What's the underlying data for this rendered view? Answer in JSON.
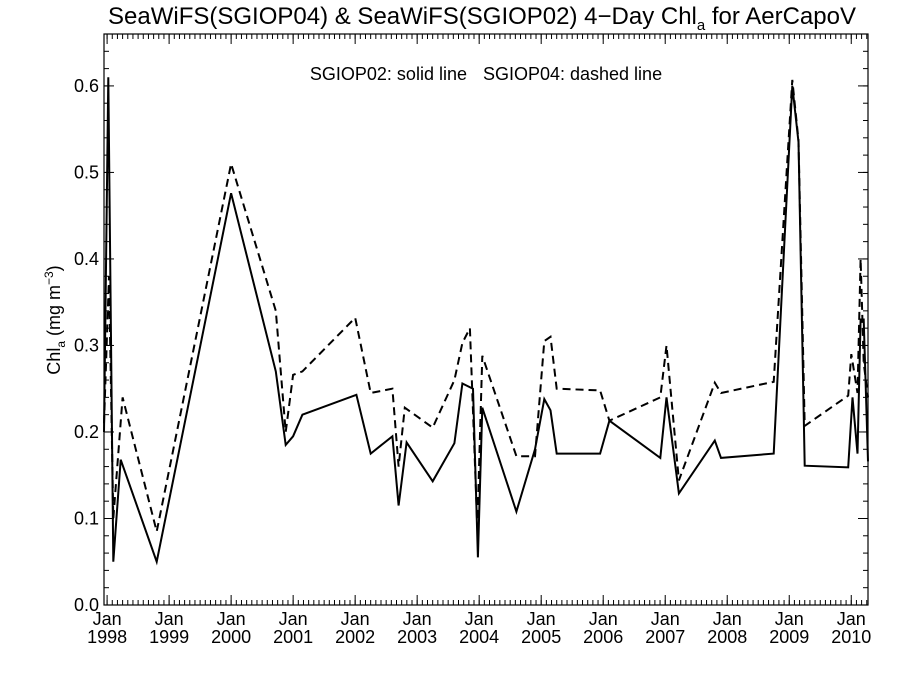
{
  "chart_data": {
    "type": "line",
    "title": "SeaWiFS(SGIOP04) & SeaWiFS(SGIOP02) 4−Day Chl",
    "title_subscript": "a",
    "title_suffix": " for AerCapoV",
    "ylabel": "Chl",
    "ylabel_subscript": "a",
    "ylabel_units": " (mg m",
    "ylabel_exponent": "−3",
    "ylabel_close": ")",
    "annotation_solid": "SGIOP02: solid line",
    "annotation_dashed": "SGIOP04: dashed line",
    "xlim": [
      1997.95,
      2010.27
    ],
    "ylim": [
      0,
      0.66
    ],
    "yticks": [
      0.0,
      0.1,
      0.2,
      0.3,
      0.4,
      0.5,
      0.6
    ],
    "ytick_labels": [
      "0.0",
      "0.1",
      "0.2",
      "0.3",
      "0.4",
      "0.5",
      "0.6"
    ],
    "xticks": [
      {
        "value": 1998,
        "month": "Jan",
        "year": "1998"
      },
      {
        "value": 1999,
        "month": "Jan",
        "year": "1999"
      },
      {
        "value": 2000,
        "month": "Jan",
        "year": "2000"
      },
      {
        "value": 2001,
        "month": "Jan",
        "year": "2001"
      },
      {
        "value": 2002,
        "month": "Jan",
        "year": "2002"
      },
      {
        "value": 2003,
        "month": "Jan",
        "year": "2003"
      },
      {
        "value": 2004,
        "month": "Jan",
        "year": "2004"
      },
      {
        "value": 2005,
        "month": "Jan",
        "year": "2005"
      },
      {
        "value": 2006,
        "month": "Jan",
        "year": "2006"
      },
      {
        "value": 2007,
        "month": "Jan",
        "year": "2007"
      },
      {
        "value": 2008,
        "month": "Jan",
        "year": "2008"
      },
      {
        "value": 2009,
        "month": "Jan",
        "year": "2009"
      },
      {
        "value": 2010,
        "month": "Jan",
        "year": "2010"
      }
    ],
    "grid": false,
    "series": [
      {
        "name": "SGIOP02",
        "style": "solid",
        "color": "#000000",
        "x": [
          1997.95,
          1998.02,
          1998.1,
          1998.22,
          1998.8,
          2000.0,
          2000.72,
          2000.88,
          2001.0,
          2001.15,
          2002.02,
          2002.25,
          2002.6,
          2002.7,
          2002.83,
          2003.25,
          2003.6,
          2003.73,
          2003.9,
          2003.98,
          2004.05,
          2004.6,
          2004.9,
          2005.05,
          2005.15,
          2005.25,
          2005.95,
          2006.1,
          2006.92,
          2007.02,
          2007.22,
          2007.8,
          2007.9,
          2008.75,
          2009.05,
          2009.15,
          2009.25,
          2009.95,
          2010.02,
          2010.1,
          2010.15,
          2010.2,
          2010.27
        ],
        "y": [
          0.2,
          0.61,
          0.05,
          0.168,
          0.05,
          0.476,
          0.27,
          0.185,
          0.195,
          0.22,
          0.243,
          0.175,
          0.195,
          0.115,
          0.188,
          0.143,
          0.187,
          0.256,
          0.25,
          0.055,
          0.228,
          0.108,
          0.18,
          0.238,
          0.225,
          0.175,
          0.175,
          0.213,
          0.17,
          0.24,
          0.129,
          0.19,
          0.17,
          0.175,
          0.6,
          0.535,
          0.161,
          0.159,
          0.24,
          0.175,
          0.33,
          0.33,
          0.166
        ]
      },
      {
        "name": "SGIOP04",
        "style": "dashed",
        "color": "#000000",
        "x": [
          1997.95,
          1998.03,
          1998.1,
          1998.25,
          1998.8,
          2000.0,
          2000.72,
          2000.88,
          2001.0,
          2001.15,
          2002.0,
          2002.25,
          2002.6,
          2002.7,
          2002.8,
          2003.25,
          2003.6,
          2003.73,
          2003.85,
          2003.97,
          2004.05,
          2004.6,
          2004.9,
          2005.05,
          2005.15,
          2005.25,
          2005.95,
          2006.1,
          2006.92,
          2007.02,
          2007.22,
          2007.8,
          2007.9,
          2008.75,
          2009.05,
          2009.15,
          2009.25,
          2009.95,
          2010.0,
          2010.1,
          2010.15,
          2010.2,
          2010.27
        ],
        "y": [
          0.21,
          0.38,
          0.1,
          0.24,
          0.085,
          0.51,
          0.34,
          0.2,
          0.266,
          0.27,
          0.332,
          0.245,
          0.25,
          0.16,
          0.228,
          0.205,
          0.26,
          0.303,
          0.32,
          0.09,
          0.288,
          0.172,
          0.172,
          0.305,
          0.31,
          0.25,
          0.248,
          0.213,
          0.24,
          0.3,
          0.144,
          0.257,
          0.245,
          0.258,
          0.607,
          0.537,
          0.207,
          0.242,
          0.29,
          0.245,
          0.4,
          0.28,
          0.24
        ]
      }
    ]
  }
}
